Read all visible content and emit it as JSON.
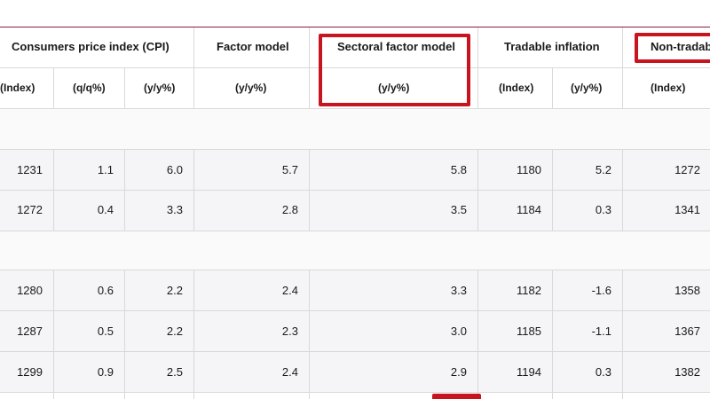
{
  "headers": {
    "cpi": "Consumers price index (CPI)",
    "factor": "Factor model",
    "sectoral": "Sectoral factor model",
    "tradable": "Tradable inflation",
    "nontradable": "Non-tradab"
  },
  "subheaders": {
    "cpi_index": "(Index)",
    "cpi_qq": "(q/q%)",
    "cpi_yy": "(y/y%)",
    "factor_yy": "(y/y%)",
    "sectoral_yy": "(y/y%)",
    "tradable_index": "(Index)",
    "tradable_yy": "(y/y%)",
    "nontradable_index": "(Index)"
  },
  "rows": [
    {
      "cpi_index": "1231",
      "cpi_qq": "1.1",
      "cpi_yy": "6.0",
      "factor": "5.7",
      "sectoral": "5.8",
      "tradable_index": "1180",
      "tradable_yy": "5.2",
      "nontradable_index": "1272"
    },
    {
      "cpi_index": "1272",
      "cpi_qq": "0.4",
      "cpi_yy": "3.3",
      "factor": "2.8",
      "sectoral": "3.5",
      "tradable_index": "1184",
      "tradable_yy": "0.3",
      "nontradable_index": "1341"
    },
    {
      "cpi_index": "1280",
      "cpi_qq": "0.6",
      "cpi_yy": "2.2",
      "factor": "2.4",
      "sectoral": "3.3",
      "tradable_index": "1182",
      "tradable_yy": "-1.6",
      "nontradable_index": "1358"
    },
    {
      "cpi_index": "1287",
      "cpi_qq": "0.5",
      "cpi_yy": "2.2",
      "factor": "2.3",
      "sectoral": "3.0",
      "tradable_index": "1185",
      "tradable_yy": "-1.1",
      "nontradable_index": "1367"
    },
    {
      "cpi_index": "1299",
      "cpi_qq": "0.9",
      "cpi_yy": "2.5",
      "factor": "2.4",
      "sectoral": "2.9",
      "tradable_index": "1194",
      "tradable_yy": "0.3",
      "nontradable_index": "1382"
    }
  ],
  "colors": {
    "highlight": "#c8141e",
    "top_rule": "#8b1a4a",
    "grid": "#d9d9d9",
    "row_shade": "#f5f5f7"
  }
}
